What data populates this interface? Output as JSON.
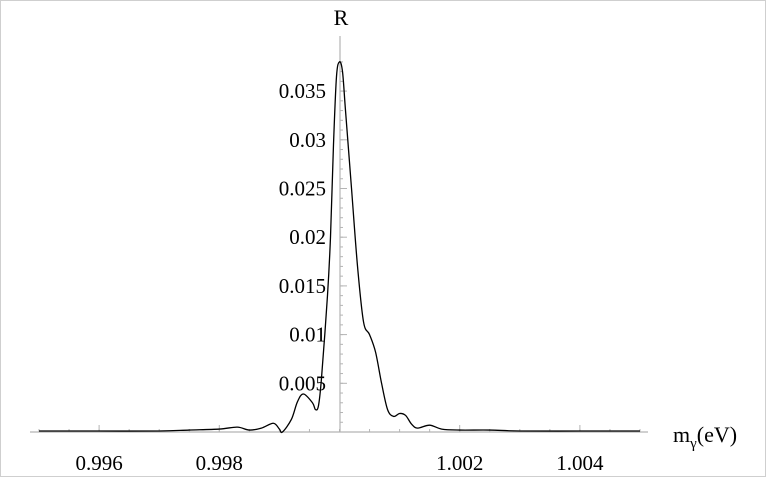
{
  "chart_data": {
    "type": "line",
    "xlabel": "m",
    "xlabel_sub": "γ",
    "xlabel_unit": "(eV)",
    "ylabel": "R",
    "xlim": [
      0.995,
      1.005
    ],
    "ylim": [
      0,
      0.0385
    ],
    "x_ticks": [
      {
        "value": 0.996,
        "label": "0.996"
      },
      {
        "value": 0.998,
        "label": "0.998"
      },
      {
        "value": 1.002,
        "label": "1.002"
      },
      {
        "value": 1.004,
        "label": "1.004"
      }
    ],
    "y_ticks": [
      {
        "value": 0.005,
        "label": "0.005"
      },
      {
        "value": 0.01,
        "label": "0.01"
      },
      {
        "value": 0.015,
        "label": "0.015"
      },
      {
        "value": 0.02,
        "label": "0.02"
      },
      {
        "value": 0.025,
        "label": "0.025"
      },
      {
        "value": 0.03,
        "label": "0.03"
      },
      {
        "value": 0.035,
        "label": "0.035"
      }
    ],
    "series": [
      {
        "points": [
          [
            0.995,
            0.0001
          ],
          [
            0.996,
            0.0001
          ],
          [
            0.997,
            0.0001
          ],
          [
            0.9975,
            0.0002
          ],
          [
            0.998,
            0.0003
          ],
          [
            0.9983,
            0.0005
          ],
          [
            0.9985,
            0.0002
          ],
          [
            0.9987,
            0.0004
          ],
          [
            0.9989,
            0.0009
          ],
          [
            0.999,
            0.0003
          ],
          [
            0.99905,
            0.0
          ],
          [
            0.9992,
            0.0013
          ],
          [
            0.9993,
            0.0031
          ],
          [
            0.9994,
            0.0039
          ],
          [
            0.99955,
            0.003
          ],
          [
            0.9996,
            0.0023
          ],
          [
            0.99965,
            0.0027
          ],
          [
            0.9997,
            0.0055
          ],
          [
            0.9998,
            0.014
          ],
          [
            0.99985,
            0.02
          ],
          [
            0.9999,
            0.0295
          ],
          [
            0.99995,
            0.0365
          ],
          [
            1.0,
            0.038
          ],
          [
            1.00005,
            0.037
          ],
          [
            1.0001,
            0.033
          ],
          [
            1.0002,
            0.025
          ],
          [
            1.0003,
            0.017
          ],
          [
            1.0004,
            0.0113
          ],
          [
            1.0005,
            0.01
          ],
          [
            1.0006,
            0.0082
          ],
          [
            1.0007,
            0.005
          ],
          [
            1.0008,
            0.0023
          ],
          [
            1.0009,
            0.0016
          ],
          [
            1.001,
            0.0019
          ],
          [
            1.0011,
            0.0017
          ],
          [
            1.0012,
            0.0008
          ],
          [
            1.0013,
            0.0004
          ],
          [
            1.0015,
            0.0007
          ],
          [
            1.0017,
            0.0003
          ],
          [
            1.002,
            0.0002
          ],
          [
            1.0025,
            0.0002
          ],
          [
            1.003,
            0.0001
          ],
          [
            1.004,
            0.0001
          ],
          [
            1.005,
            0.0001
          ]
        ]
      }
    ]
  }
}
